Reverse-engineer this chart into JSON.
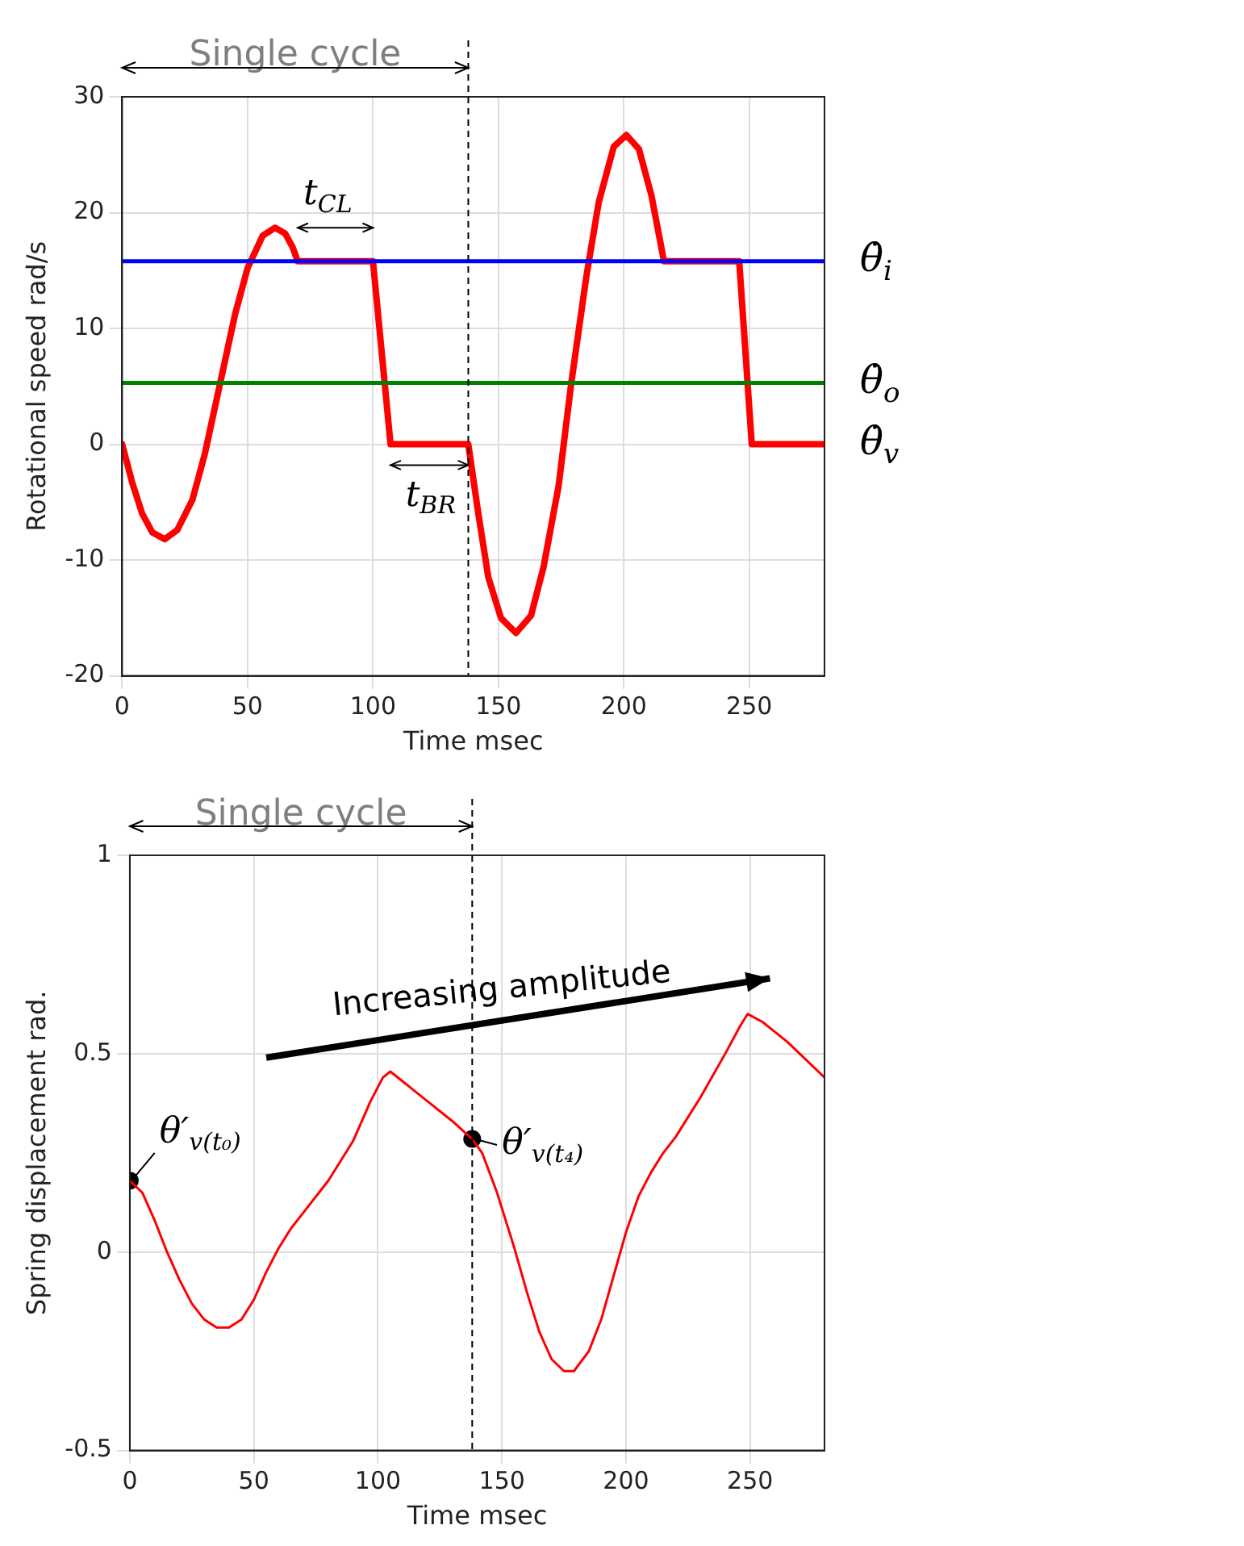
{
  "chart_data": [
    {
      "type": "line",
      "xlabel": "Time msec",
      "ylabel": "Rotational speed rad/s",
      "xlim": [
        0,
        280
      ],
      "xticks": [
        0,
        50,
        100,
        150,
        200,
        250
      ],
      "ylim": [
        -20,
        30
      ],
      "yticks": [
        -20,
        -10,
        0,
        10,
        20,
        30
      ],
      "grid": true,
      "legend": false,
      "series": [
        {
          "name": "θ̇$_{i}$",
          "color": "#0000ff",
          "x": [
            0,
            280
          ],
          "values": [
            15.8,
            15.8
          ]
        },
        {
          "name": "θ̇$_{o}$",
          "color": "#007f00",
          "x": [
            0,
            280
          ],
          "values": [
            5.3,
            5.3
          ]
        },
        {
          "name": "θ̇$_{v}$",
          "color": "#ff0000",
          "x": [
            0,
            4,
            8,
            12,
            17,
            22,
            28,
            33,
            39,
            45,
            50,
            56,
            61,
            65,
            68,
            70,
            100,
            107,
            138,
            142,
            146,
            151,
            157,
            163,
            168,
            174,
            179,
            185,
            190,
            196,
            201,
            206,
            211,
            216,
            246,
            251,
            280
          ],
          "values": [
            0,
            -3.3,
            -6,
            -7.6,
            -8.2,
            -7.4,
            -4.8,
            -0.8,
            5.2,
            11.2,
            15.2,
            18,
            18.7,
            18.2,
            17,
            15.8,
            15.8,
            0,
            0,
            -6,
            -11.5,
            -15,
            -16.3,
            -14.8,
            -10.6,
            -3.6,
            5.2,
            14.4,
            20.9,
            25.7,
            26.7,
            25.5,
            21.5,
            15.8,
            15.8,
            0,
            0
          ]
        }
      ],
      "ref_lines": [
        {
          "axis": "x",
          "value": 138,
          "color": "#000000",
          "line_style": "dashed"
        }
      ],
      "annotations": [
        "Single cycle",
        "t$_{CL}$",
        "t$_{BR}$"
      ]
    },
    {
      "type": "line",
      "xlabel": "Time msec",
      "ylabel": "Spring displacement rad.",
      "xlim": [
        0,
        280
      ],
      "xticks": [
        0,
        50,
        100,
        150,
        200,
        250
      ],
      "ylim": [
        -0.5,
        1
      ],
      "yticks": [
        -0.5,
        0,
        0.5,
        1
      ],
      "grid": true,
      "legend": false,
      "series": [
        {
          "color": "#ff0000",
          "x": [
            0,
            5,
            10,
            15,
            20,
            25,
            30,
            35,
            40,
            45,
            50,
            55,
            60,
            65,
            70,
            80,
            90,
            97,
            102,
            105,
            110,
            120,
            130,
            138,
            142,
            148,
            155,
            160,
            165,
            170,
            175,
            179,
            185,
            190,
            195,
            200,
            205,
            210,
            215,
            220,
            230,
            240,
            246,
            249,
            255,
            265,
            280
          ],
          "values": [
            0.18,
            0.15,
            0.08,
            0,
            -0.07,
            -0.13,
            -0.17,
            -0.19,
            -0.19,
            -0.17,
            -0.12,
            -0.05,
            0.01,
            0.06,
            0.1,
            0.18,
            0.28,
            0.38,
            0.44,
            0.455,
            0.43,
            0.38,
            0.33,
            0.285,
            0.25,
            0.15,
            0.01,
            -0.1,
            -0.2,
            -0.27,
            -0.3,
            -0.3,
            -0.25,
            -0.17,
            -0.06,
            0.05,
            0.14,
            0.2,
            0.25,
            0.29,
            0.39,
            0.5,
            0.57,
            0.6,
            0.58,
            0.53,
            0.44
          ]
        },
        {
          "type": "scatter",
          "marker": "circle",
          "color": "#000000",
          "x": [
            0,
            138
          ],
          "values": [
            0.18,
            0.285
          ]
        }
      ],
      "ref_lines": [
        {
          "axis": "x",
          "value": 138,
          "color": "#000000",
          "line_style": "dashed"
        }
      ],
      "annotations": [
        "Single cycle",
        "Increasing amplitude",
        "θ′$_{v(t₀)}$",
        "θ′$_{v(t₄)}$"
      ]
    }
  ]
}
